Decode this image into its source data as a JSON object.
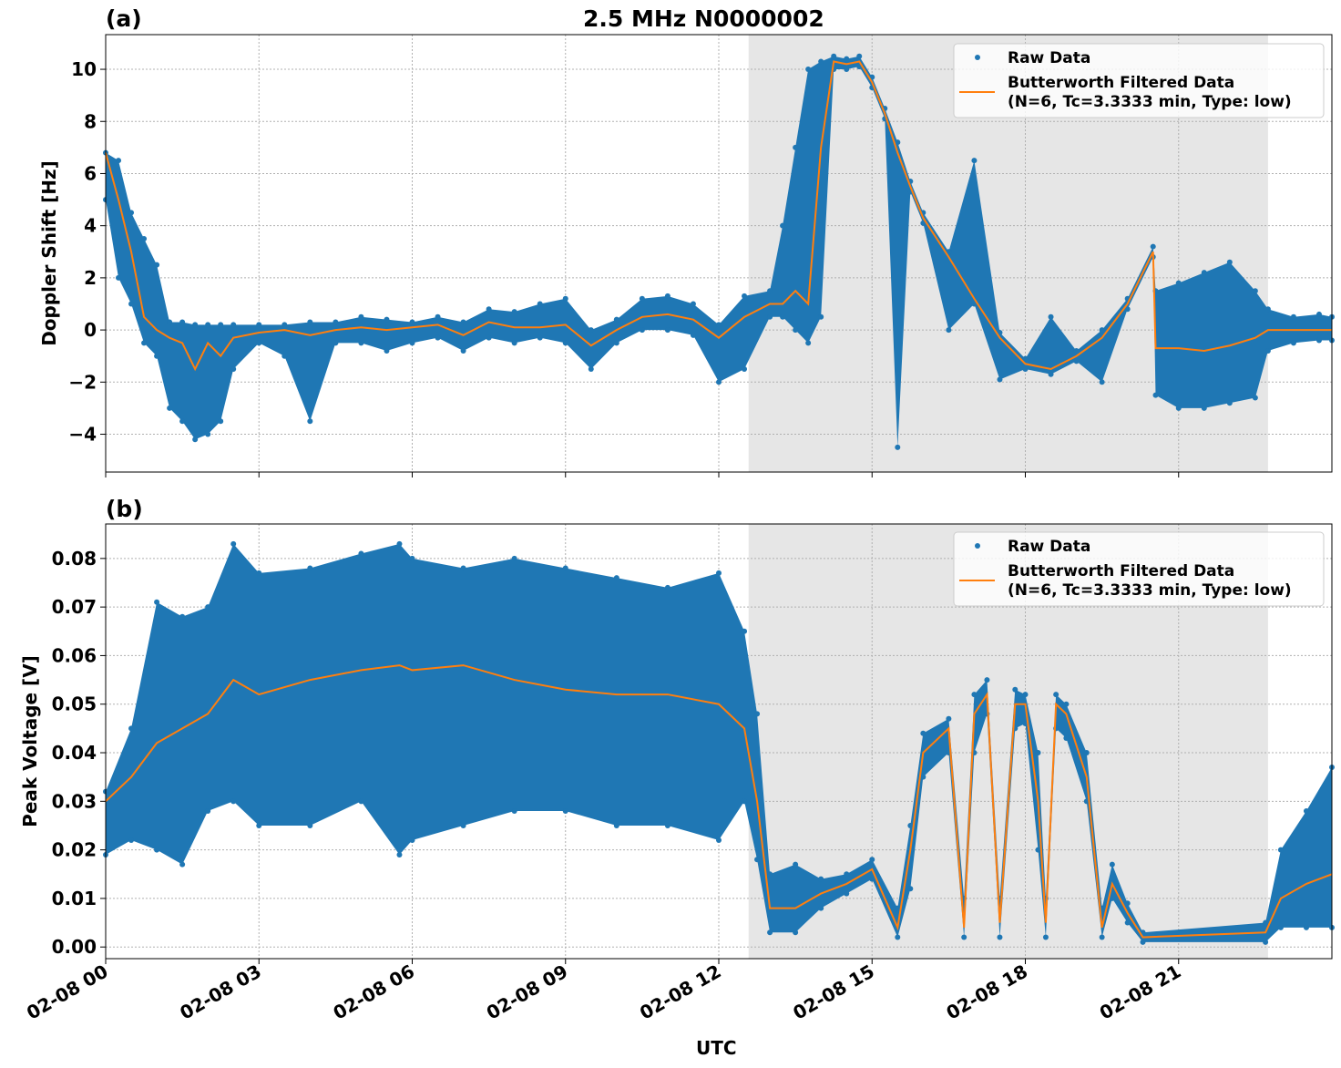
{
  "chart_data": [
    {
      "type": "scatter+line",
      "panel_label": "(a)",
      "title": "2.5 MHz N0000002",
      "ylabel": "Doppler Shift [Hz]",
      "xlabel": "",
      "xlim": [
        "02-08 00:00",
        "02-09 00:00"
      ],
      "ylim": [
        -5.45,
        11.33
      ],
      "yticks": [
        -4,
        -2,
        0,
        2,
        4,
        6,
        8,
        10
      ],
      "ytick_labels": [
        "−4",
        "−2",
        "0",
        "2",
        "4",
        "6",
        "8",
        "10"
      ],
      "grid": true,
      "legend_placement": "top-right",
      "shaded_span": [
        "12:35",
        "22:45"
      ],
      "legend": [
        "Raw Data",
        "Butterworth Filtered Data",
        "(N=6, Tc=3.3333 min, Type: low)"
      ],
      "columns": [
        "time_utc",
        "filtered",
        "raw_min",
        "raw_max"
      ],
      "rows": [
        [
          "00:00",
          6.8,
          5.0,
          6.8
        ],
        [
          "00:15",
          5.0,
          2.0,
          6.5
        ],
        [
          "00:30",
          3.0,
          1.0,
          4.5
        ],
        [
          "00:45",
          0.5,
          -0.5,
          3.5
        ],
        [
          "01:00",
          0.0,
          -1.0,
          2.5
        ],
        [
          "01:15",
          -0.3,
          -3.0,
          0.3
        ],
        [
          "01:30",
          -0.5,
          -3.5,
          0.3
        ],
        [
          "01:45",
          -1.5,
          -4.2,
          0.2
        ],
        [
          "02:00",
          -0.5,
          -4.0,
          0.2
        ],
        [
          "02:15",
          -1.0,
          -3.5,
          0.2
        ],
        [
          "02:30",
          -0.3,
          -1.5,
          0.2
        ],
        [
          "03:00",
          -0.1,
          -0.5,
          0.2
        ],
        [
          "03:30",
          0.0,
          -1.0,
          0.2
        ],
        [
          "04:00",
          -0.2,
          -3.5,
          0.3
        ],
        [
          "04:30",
          0.0,
          -0.5,
          0.3
        ],
        [
          "05:00",
          0.1,
          -0.5,
          0.5
        ],
        [
          "05:30",
          0.0,
          -0.8,
          0.4
        ],
        [
          "06:00",
          0.1,
          -0.5,
          0.3
        ],
        [
          "06:30",
          0.2,
          -0.3,
          0.5
        ],
        [
          "07:00",
          -0.2,
          -0.8,
          0.3
        ],
        [
          "07:30",
          0.3,
          -0.3,
          0.8
        ],
        [
          "08:00",
          0.1,
          -0.5,
          0.7
        ],
        [
          "08:30",
          0.1,
          -0.3,
          1.0
        ],
        [
          "09:00",
          0.2,
          -0.5,
          1.2
        ],
        [
          "09:30",
          -0.6,
          -1.5,
          0.0
        ],
        [
          "10:00",
          0.0,
          -0.5,
          0.4
        ],
        [
          "10:30",
          0.5,
          0.0,
          1.2
        ],
        [
          "11:00",
          0.6,
          0.0,
          1.3
        ],
        [
          "11:30",
          0.4,
          -0.2,
          1.0
        ],
        [
          "12:00",
          -0.3,
          -2.0,
          0.2
        ],
        [
          "12:30",
          0.5,
          -1.5,
          1.3
        ],
        [
          "13:00",
          1.0,
          0.5,
          1.5
        ],
        [
          "13:15",
          1.0,
          0.5,
          4.0
        ],
        [
          "13:30",
          1.5,
          0.0,
          7.0
        ],
        [
          "13:45",
          1.0,
          -0.5,
          10.0
        ],
        [
          "14:00",
          7.0,
          0.5,
          10.3
        ],
        [
          "14:15",
          10.3,
          10.0,
          10.5
        ],
        [
          "14:30",
          10.2,
          10.0,
          10.4
        ],
        [
          "14:45",
          10.3,
          10.1,
          10.5
        ],
        [
          "15:00",
          9.5,
          9.3,
          9.7
        ],
        [
          "15:15",
          8.3,
          8.1,
          8.5
        ],
        [
          "15:30",
          6.8,
          -4.5,
          7.2
        ],
        [
          "15:45",
          5.5,
          5.3,
          5.7
        ],
        [
          "16:00",
          4.3,
          4.1,
          4.5
        ],
        [
          "16:30",
          2.8,
          0.0,
          3.0
        ],
        [
          "17:00",
          1.2,
          1.0,
          6.5
        ],
        [
          "17:30",
          -0.3,
          -1.9,
          -0.1
        ],
        [
          "18:00",
          -1.3,
          -1.5,
          -1.1
        ],
        [
          "18:30",
          -1.5,
          -1.7,
          0.5
        ],
        [
          "19:00",
          -1.0,
          -1.2,
          -0.8
        ],
        [
          "19:30",
          -0.3,
          -2.0,
          0.0
        ],
        [
          "20:00",
          1.0,
          0.8,
          1.2
        ],
        [
          "20:30",
          3.0,
          2.8,
          3.2
        ],
        [
          "20:33",
          -0.7,
          -2.5,
          1.5
        ],
        [
          "21:00",
          -0.7,
          -3.0,
          1.8
        ],
        [
          "21:30",
          -0.8,
          -3.0,
          2.2
        ],
        [
          "22:00",
          -0.6,
          -2.8,
          2.6
        ],
        [
          "22:30",
          -0.3,
          -2.6,
          1.5
        ],
        [
          "22:45",
          0.0,
          -0.8,
          0.8
        ],
        [
          "23:15",
          0.0,
          -0.5,
          0.5
        ],
        [
          "23:45",
          0.0,
          -0.4,
          0.6
        ],
        [
          "24:00",
          0.0,
          -0.4,
          0.5
        ]
      ]
    },
    {
      "type": "scatter+line",
      "panel_label": "(b)",
      "title": "",
      "ylabel": "Peak Voltage [V]",
      "xlabel": "UTC",
      "xlim": [
        "02-08 00:00",
        "02-09 00:00"
      ],
      "ylim": [
        -0.0024,
        0.0871
      ],
      "yticks": [
        0,
        0.01,
        0.02,
        0.03,
        0.04,
        0.05,
        0.06,
        0.07,
        0.08
      ],
      "ytick_labels": [
        "0.00",
        "0.01",
        "0.02",
        "0.03",
        "0.04",
        "0.05",
        "0.06",
        "0.07",
        "0.08"
      ],
      "xticks": [
        "00:00",
        "03:00",
        "06:00",
        "09:00",
        "12:00",
        "15:00",
        "18:00",
        "21:00"
      ],
      "xtick_labels": [
        "02-08 00",
        "02-08 03",
        "02-08 06",
        "02-08 09",
        "02-08 12",
        "02-08 15",
        "02-08 18",
        "02-08 21"
      ],
      "grid": true,
      "legend_placement": "top-right",
      "shaded_span": [
        "12:35",
        "22:45"
      ],
      "legend": [
        "Raw Data",
        "Butterworth Filtered Data",
        "(N=6, Tc=3.3333 min, Type: low)"
      ],
      "columns": [
        "time_utc",
        "filtered",
        "raw_min",
        "raw_max"
      ],
      "rows": [
        [
          "00:00",
          0.03,
          0.019,
          0.032
        ],
        [
          "00:30",
          0.035,
          0.022,
          0.045
        ],
        [
          "01:00",
          0.042,
          0.02,
          0.071
        ],
        [
          "01:30",
          0.045,
          0.017,
          0.068
        ],
        [
          "02:00",
          0.048,
          0.028,
          0.07
        ],
        [
          "02:30",
          0.055,
          0.03,
          0.083
        ],
        [
          "03:00",
          0.052,
          0.025,
          0.077
        ],
        [
          "04:00",
          0.055,
          0.025,
          0.078
        ],
        [
          "05:00",
          0.057,
          0.03,
          0.081
        ],
        [
          "05:45",
          0.058,
          0.019,
          0.083
        ],
        [
          "06:00",
          0.057,
          0.022,
          0.08
        ],
        [
          "07:00",
          0.058,
          0.025,
          0.078
        ],
        [
          "08:00",
          0.055,
          0.028,
          0.08
        ],
        [
          "09:00",
          0.053,
          0.028,
          0.078
        ],
        [
          "10:00",
          0.052,
          0.025,
          0.076
        ],
        [
          "11:00",
          0.052,
          0.025,
          0.074
        ],
        [
          "12:00",
          0.05,
          0.022,
          0.077
        ],
        [
          "12:30",
          0.045,
          0.03,
          0.065
        ],
        [
          "12:45",
          0.03,
          0.018,
          0.048
        ],
        [
          "13:00",
          0.008,
          0.003,
          0.015
        ],
        [
          "13:30",
          0.008,
          0.003,
          0.017
        ],
        [
          "14:00",
          0.011,
          0.008,
          0.014
        ],
        [
          "14:30",
          0.013,
          0.011,
          0.015
        ],
        [
          "15:00",
          0.016,
          0.014,
          0.018
        ],
        [
          "15:30",
          0.004,
          0.002,
          0.008
        ],
        [
          "15:45",
          0.02,
          0.012,
          0.025
        ],
        [
          "16:00",
          0.04,
          0.035,
          0.044
        ],
        [
          "16:30",
          0.045,
          0.04,
          0.047
        ],
        [
          "16:48",
          0.004,
          0.002,
          0.01
        ],
        [
          "17:00",
          0.048,
          0.04,
          0.052
        ],
        [
          "17:15",
          0.052,
          0.048,
          0.055
        ],
        [
          "17:30",
          0.005,
          0.002,
          0.01
        ],
        [
          "17:48",
          0.05,
          0.045,
          0.053
        ],
        [
          "18:00",
          0.05,
          0.046,
          0.052
        ],
        [
          "18:15",
          0.03,
          0.02,
          0.04
        ],
        [
          "18:24",
          0.005,
          0.002,
          0.01
        ],
        [
          "18:36",
          0.05,
          0.045,
          0.052
        ],
        [
          "18:48",
          0.048,
          0.043,
          0.05
        ],
        [
          "19:12",
          0.035,
          0.03,
          0.04
        ],
        [
          "19:30",
          0.004,
          0.002,
          0.008
        ],
        [
          "19:42",
          0.013,
          0.01,
          0.017
        ],
        [
          "20:00",
          0.007,
          0.005,
          0.009
        ],
        [
          "20:18",
          0.002,
          0.001,
          0.003
        ],
        [
          "22:42",
          0.003,
          0.001,
          0.005
        ],
        [
          "23:00",
          0.01,
          0.004,
          0.02
        ],
        [
          "23:30",
          0.013,
          0.004,
          0.028
        ],
        [
          "24:00",
          0.015,
          0.004,
          0.037
        ]
      ]
    }
  ],
  "colors": {
    "raw": "#1f77b4",
    "filtered": "#ff7f0e",
    "shade": "#e6e6e6",
    "grid": "#b0b0b0"
  }
}
